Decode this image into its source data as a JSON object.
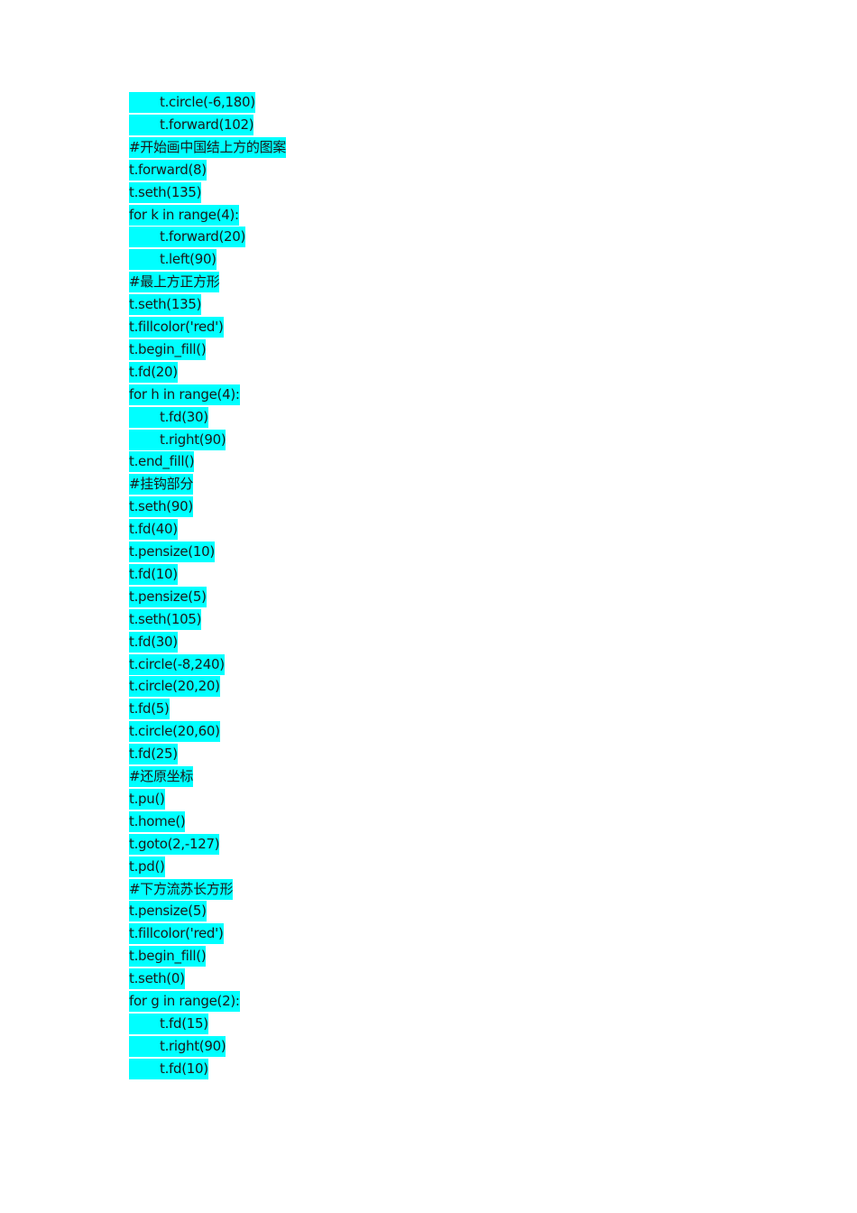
{
  "lines": [
    "\tt.circle(-6,180)",
    "\tt.forward(102)",
    "#开始画中国结上方的图案",
    "t.forward(8)",
    "t.seth(135)",
    "for k in range(4):",
    "\tt.forward(20)",
    "\tt.left(90)",
    "#最上方正方形",
    "t.seth(135)",
    "t.fillcolor('red')",
    "t.begin_fill()",
    "t.fd(20)",
    "for h in range(4):",
    "\tt.fd(30)",
    "\tt.right(90)",
    "t.end_fill()",
    "#挂钩部分",
    "t.seth(90)",
    "t.fd(40)",
    "t.pensize(10)",
    "t.fd(10)",
    "t.pensize(5)",
    "t.seth(105)",
    "t.fd(30)",
    "t.circle(-8,240)",
    "t.circle(20,20)",
    "t.fd(5)",
    "t.circle(20,60)",
    "t.fd(25)",
    "#还原坐标",
    "t.pu()",
    "t.home()",
    "t.goto(2,-127)",
    "t.pd()",
    "#下方流苏长方形",
    "t.pensize(5)",
    "t.fillcolor('red')",
    "t.begin_fill()",
    "t.seth(0)",
    "for g in range(2):",
    "\tt.fd(15)",
    "\tt.right(90)",
    "\tt.fd(10)"
  ]
}
